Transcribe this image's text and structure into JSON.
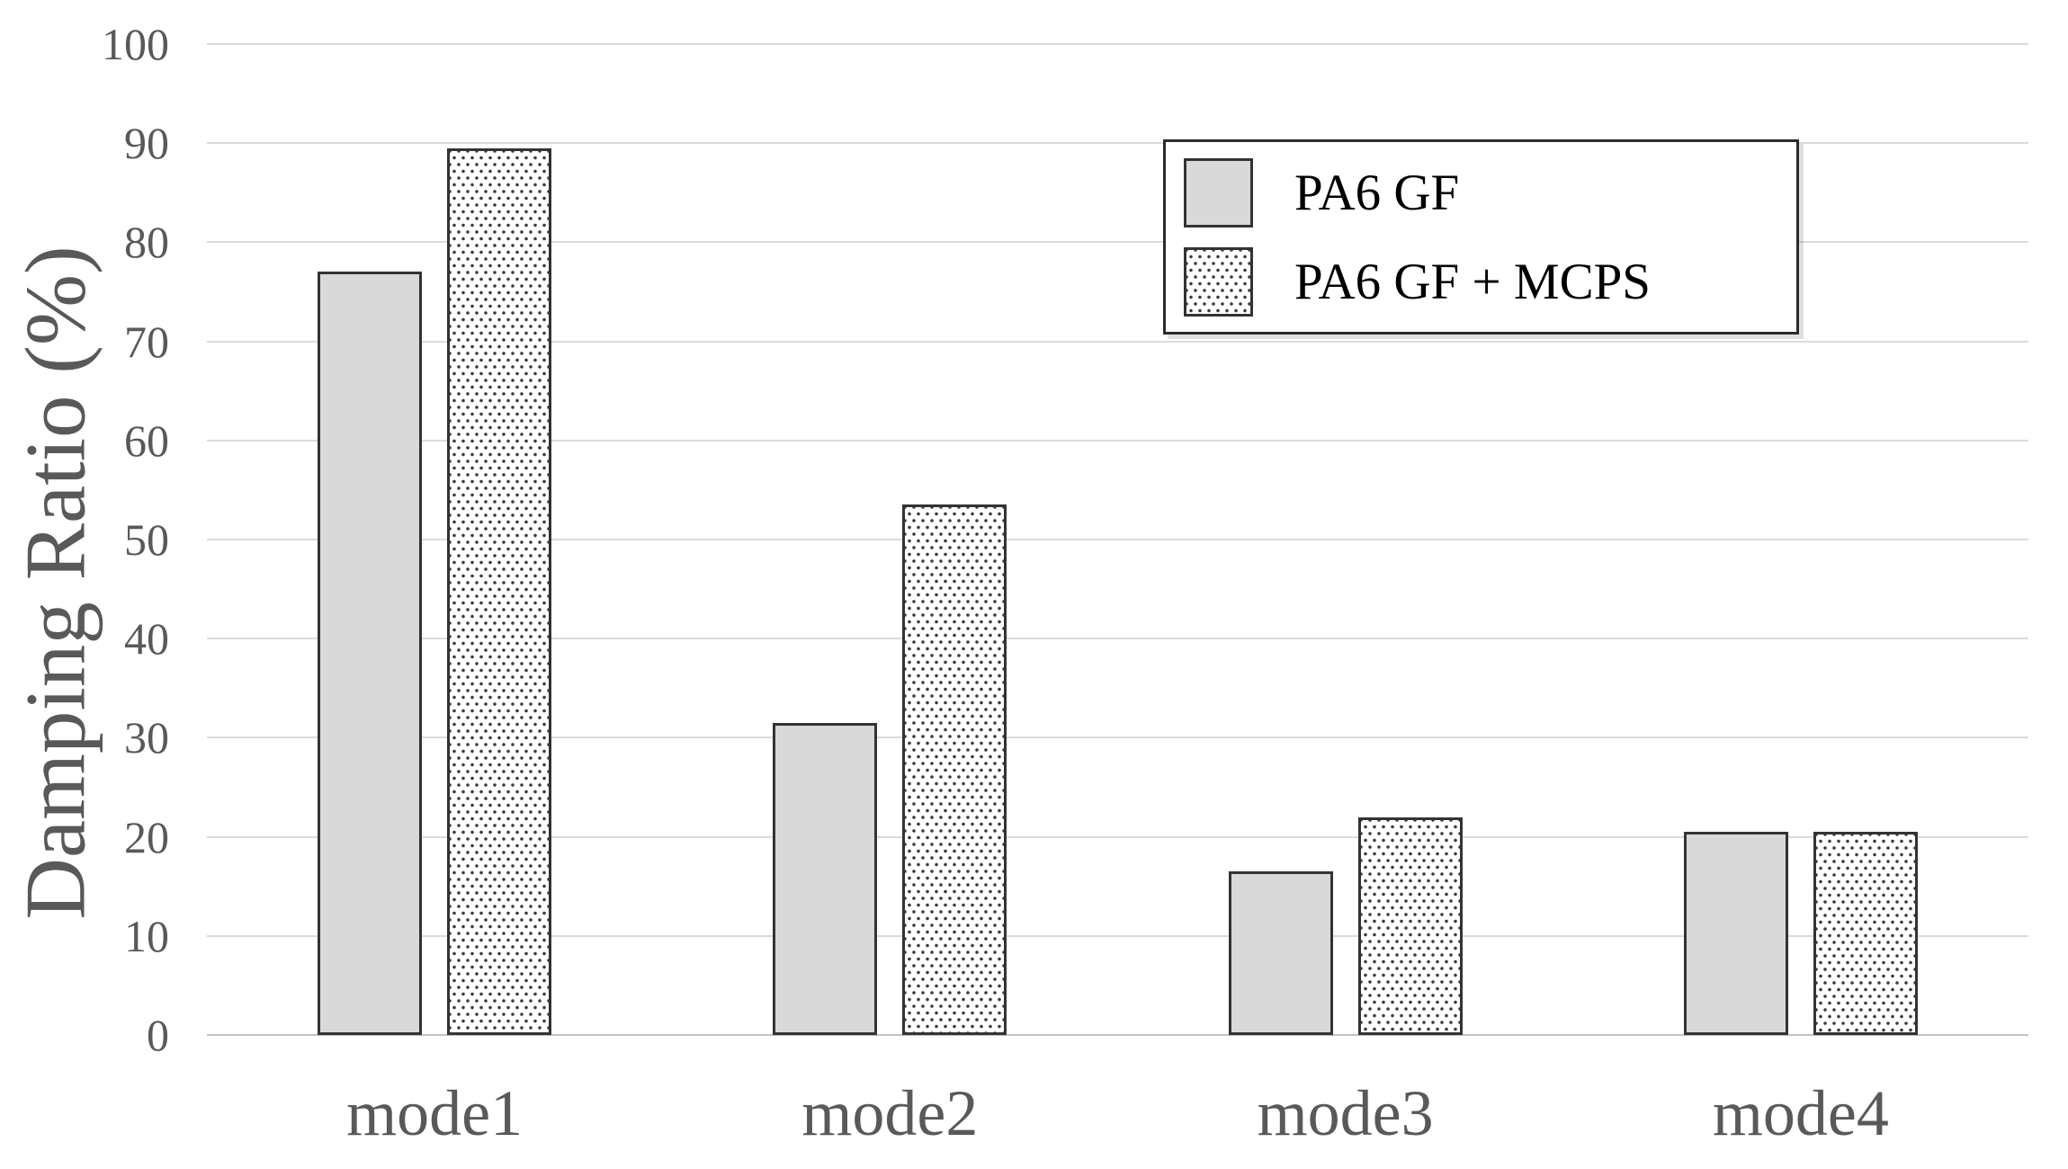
{
  "chart_data": {
    "type": "bar",
    "title": "",
    "xlabel": "",
    "ylabel": "Damping Ratio (%)",
    "categories": [
      "mode1",
      "mode2",
      "mode3",
      "mode4"
    ],
    "series": [
      {
        "name": "PA6 GF",
        "style": "solid-gray",
        "values": [
          77,
          31.5,
          16.5,
          20.5
        ]
      },
      {
        "name": "PA6 GF + MCPS",
        "style": "dotted",
        "values": [
          89.5,
          53.5,
          22,
          20.5
        ]
      }
    ],
    "ylim": [
      0,
      100
    ],
    "ytick_step": 10,
    "yticks": [
      0,
      10,
      20,
      30,
      40,
      50,
      60,
      70,
      80,
      90,
      100
    ],
    "grid": "horizontal",
    "legend_position": "top-right"
  },
  "colors": {
    "bar_fill": "#d9d9d9",
    "bar_border": "#333333",
    "dot_color": "#3c3c3c",
    "axis_text": "#595959",
    "legend_text": "#000000",
    "gridline": "#dbdbdb",
    "baseline": "#c2c2c2"
  }
}
